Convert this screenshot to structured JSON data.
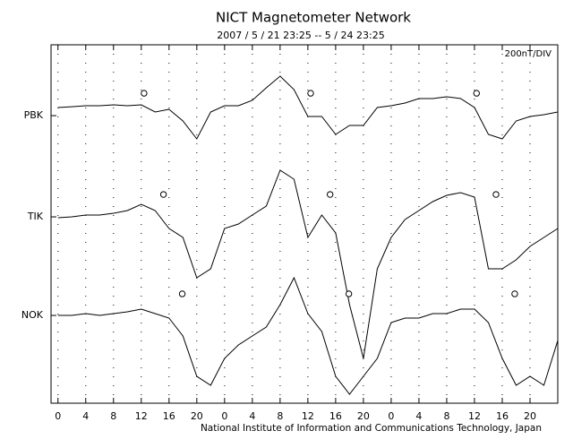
{
  "chart_data": {
    "type": "line",
    "title": "NICT Magnetometer Network",
    "subtitle": "2007 / 5 / 21   23:25 --  5 / 24   23:25",
    "annotation": "200nT/DIV",
    "footer": "National Institute of Information and Communications Technology, Japan",
    "x": [
      0,
      2,
      4,
      6,
      8,
      10,
      12,
      14,
      16,
      18,
      20,
      22,
      24,
      26,
      28,
      30,
      32,
      34,
      36,
      38,
      40,
      42,
      44,
      46,
      48,
      50,
      52,
      54,
      56,
      58,
      60,
      62,
      64,
      66,
      68,
      70,
      72
    ],
    "xlim": [
      -1,
      72
    ],
    "xticks": [
      0,
      4,
      8,
      12,
      16,
      20,
      {
        "value": 24,
        "label": "0"
      },
      {
        "value": 28,
        "label": "4"
      },
      {
        "value": 32,
        "label": "8"
      },
      {
        "value": 36,
        "label": "12"
      },
      {
        "value": 40,
        "label": "16"
      },
      {
        "value": 44,
        "label": "20"
      },
      {
        "value": 48,
        "label": "0"
      },
      {
        "value": 52,
        "label": "4"
      },
      {
        "value": 56,
        "label": "8"
      },
      {
        "value": 60,
        "label": "12"
      },
      {
        "value": 64,
        "label": "16"
      },
      {
        "value": 68,
        "label": "20"
      }
    ],
    "ylim": [
      0,
      2160
    ],
    "yticks": [
      {
        "value": 1733,
        "label": "PBK"
      },
      {
        "value": 1123,
        "label": "TIK"
      },
      {
        "value": 529,
        "label": "NOK"
      }
    ],
    "grid": true,
    "series": [
      {
        "name": "PBK",
        "color": "#000000",
        "values": [
          1782,
          1787,
          1793,
          1793,
          1798,
          1793,
          1798,
          1755,
          1771,
          1701,
          1593,
          1755,
          1793,
          1793,
          1825,
          1901,
          1971,
          1890,
          1728,
          1728,
          1620,
          1674,
          1674,
          1782,
          1793,
          1809,
          1836,
          1836,
          1847,
          1836,
          1782,
          1620,
          1593,
          1701,
          1728,
          1739,
          1755
        ],
        "markers": [
          {
            "x": 12.4,
            "y": 1868
          },
          {
            "x": 36.4,
            "y": 1868
          },
          {
            "x": 60.3,
            "y": 1868
          }
        ]
      },
      {
        "name": "TIK",
        "color": "#000000",
        "values": [
          1118,
          1123,
          1134,
          1134,
          1145,
          1161,
          1199,
          1161,
          1053,
          999,
          756,
          810,
          1053,
          1080,
          1134,
          1188,
          1404,
          1350,
          999,
          1134,
          1026,
          594,
          270,
          810,
          999,
          1107,
          1161,
          1215,
          1253,
          1269,
          1242,
          810,
          810,
          864,
          945,
          999,
          1053
        ],
        "markers": [
          {
            "x": 15.2,
            "y": 1258
          },
          {
            "x": 39.2,
            "y": 1258
          },
          {
            "x": 63.1,
            "y": 1258
          }
        ]
      },
      {
        "name": "NOK",
        "color": "#000000",
        "values": [
          529,
          529,
          540,
          529,
          540,
          551,
          567,
          540,
          513,
          405,
          162,
          108,
          270,
          351,
          405,
          459,
          594,
          756,
          540,
          432,
          162,
          54,
          162,
          270,
          486,
          513,
          513,
          540,
          540,
          567,
          567,
          486,
          270,
          108,
          162,
          108,
          378
        ],
        "markers": [
          {
            "x": 17.9,
            "y": 659
          },
          {
            "x": 41.9,
            "y": 659
          },
          {
            "x": 65.8,
            "y": 659
          }
        ]
      }
    ]
  }
}
